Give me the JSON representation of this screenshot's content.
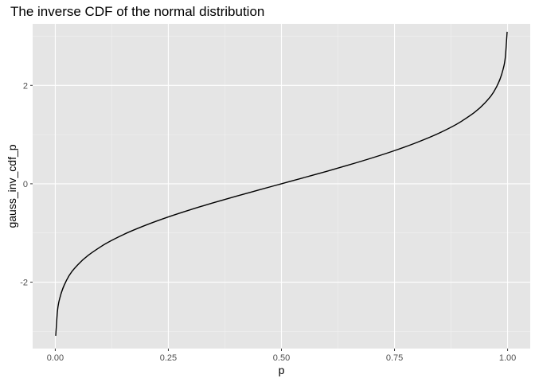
{
  "chart_data": {
    "type": "line",
    "title": "The inverse CDF of the normal distribution",
    "xlabel": "p",
    "ylabel": "gauss_inv_cdf_p",
    "xlim": [
      -0.05,
      1.05
    ],
    "ylim": [
      -3.35,
      3.25
    ],
    "x_ticks": [
      0.0,
      0.25,
      0.5,
      0.75,
      1.0
    ],
    "x_tick_labels": [
      "0.00",
      "0.25",
      "0.50",
      "0.75",
      "1.00"
    ],
    "y_ticks": [
      -2,
      0,
      2
    ],
    "y_tick_labels": [
      "-2",
      "0",
      "2"
    ],
    "grid": true,
    "legend": "none",
    "series": [
      {
        "x": [
          0.001,
          0.005,
          0.01,
          0.025,
          0.05,
          0.1,
          0.15,
          0.2,
          0.25,
          0.3,
          0.35,
          0.4,
          0.45,
          0.5,
          0.55,
          0.6,
          0.65,
          0.7,
          0.75,
          0.8,
          0.85,
          0.9,
          0.95,
          0.975,
          0.99,
          0.995,
          0.999
        ],
        "y": [
          -3.09,
          -2.576,
          -2.326,
          -1.96,
          -1.645,
          -1.282,
          -1.036,
          -0.842,
          -0.674,
          -0.524,
          -0.385,
          -0.253,
          -0.126,
          0.0,
          0.126,
          0.253,
          0.385,
          0.524,
          0.674,
          0.842,
          1.036,
          1.282,
          1.645,
          1.96,
          2.326,
          2.576,
          3.09
        ]
      }
    ]
  }
}
